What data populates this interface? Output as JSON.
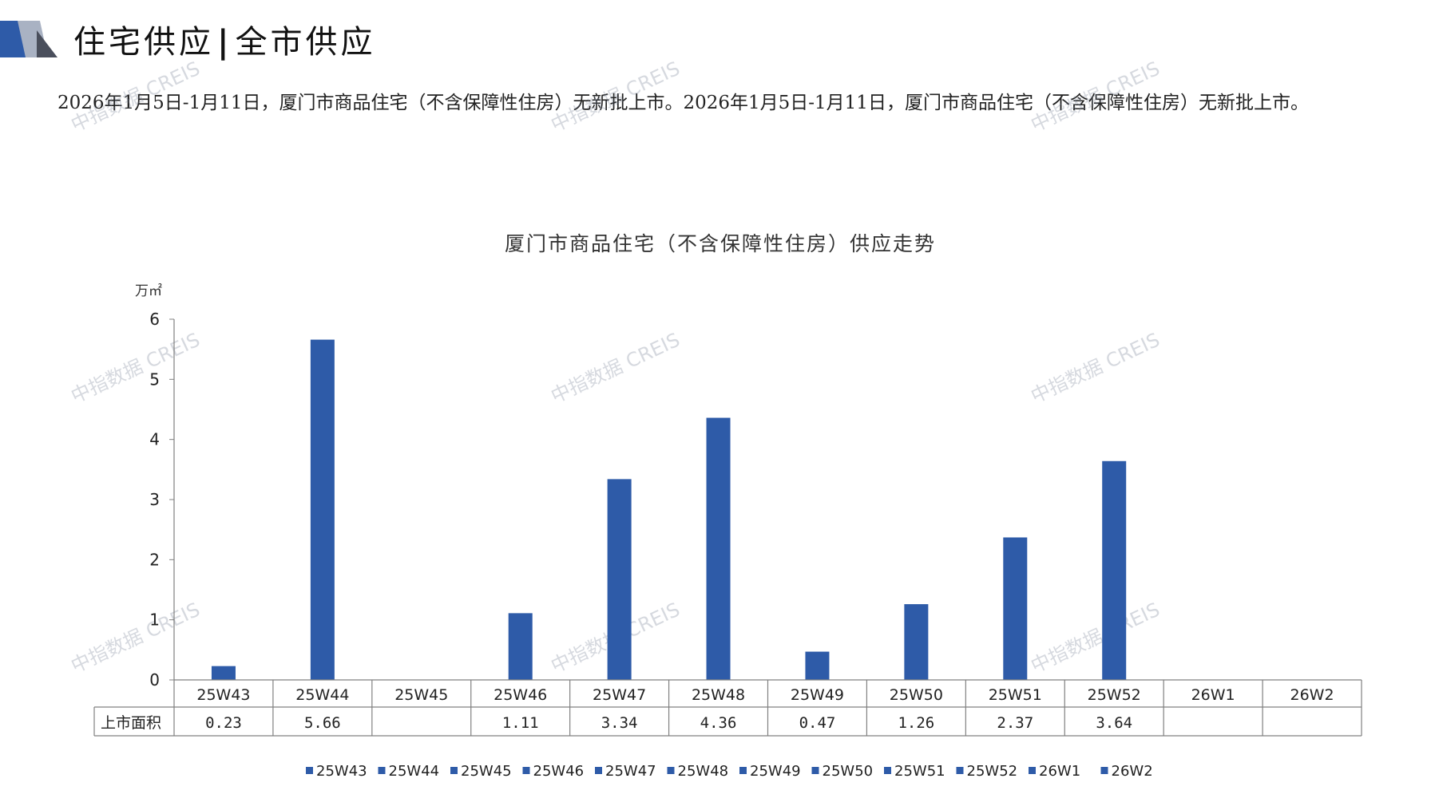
{
  "header": {
    "title_left": "住宅供应",
    "title_sep": "|",
    "title_right": "全市供应"
  },
  "summary": {
    "text": "2026年1月5日-1月11日，厦门市商品住宅（不含保障性住房）无新批上市。2026年1月5日-1月11日，厦门市商品住宅（不含保障性住房）无新批上市。"
  },
  "watermark": {
    "text": "中指数据 CREIS"
  },
  "colors": {
    "bar": "#2E5BA8",
    "axis": "#808080",
    "border": "#808080"
  },
  "chart_data": {
    "type": "bar",
    "title": "厦门市商品住宅（不含保障性住房）供应走势",
    "ylabel": "万㎡",
    "ylim": [
      0,
      6
    ],
    "yticks": [
      0,
      1,
      2,
      3,
      4,
      5,
      6
    ],
    "categories": [
      "25W43",
      "25W44",
      "25W45",
      "25W46",
      "25W47",
      "25W48",
      "25W49",
      "25W50",
      "25W51",
      "25W52",
      "26W1",
      "26W2"
    ],
    "series": [
      {
        "name": "上市面积",
        "values": [
          0.23,
          5.66,
          null,
          1.11,
          3.34,
          4.36,
          0.47,
          1.26,
          2.37,
          3.64,
          null,
          null
        ]
      }
    ],
    "table_labels": [
      "0.23",
      "5.66",
      "",
      "1.11",
      "3.34",
      "4.36",
      "0.47",
      "1.26",
      "2.37",
      "3.64",
      "",
      ""
    ],
    "legend": [
      "25W43",
      "25W44",
      "25W45",
      "25W46",
      "25W47",
      "25W48",
      "25W49",
      "25W50",
      "25W51",
      "25W52",
      "26W1",
      "26W2"
    ],
    "legend_position": "bottom",
    "grid": false
  }
}
